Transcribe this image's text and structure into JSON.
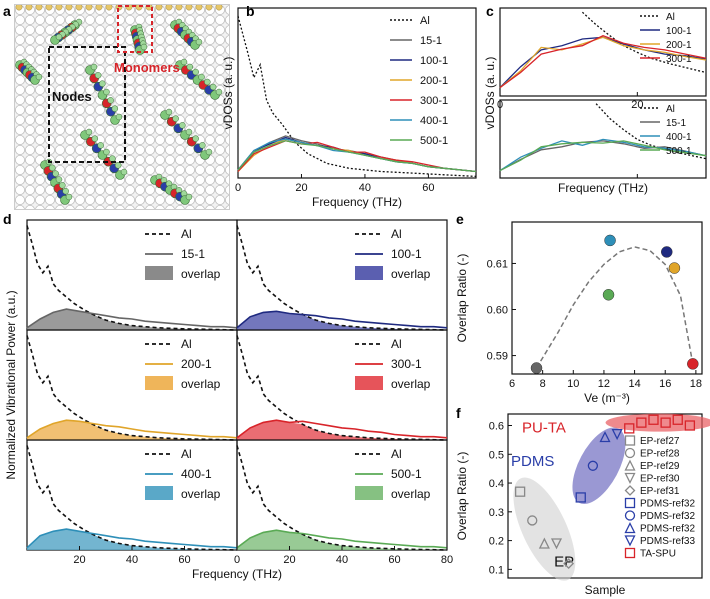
{
  "panel_labels": {
    "a": "a",
    "b": "b",
    "c": "c",
    "d": "d",
    "e": "e",
    "f": "f"
  },
  "panel_a": {
    "nodes_label": "Nodes",
    "monomers_label": "Monomers"
  },
  "colors": {
    "Al": "#111111",
    "15-1": "#666666",
    "100-1": "#1f2a80",
    "200-1": "#e0a52a",
    "300-1": "#d8242a",
    "400-1": "#2e8fb8",
    "500-1": "#5aaa55",
    "node_box": "#111111",
    "monomer_box": "#d8242a",
    "overlap_15": "#8a8a8a",
    "overlap_100": "#5b5fb0",
    "overlap_200": "#efb55a",
    "overlap_300": "#e6545a",
    "overlap_400": "#5aa8c8",
    "overlap_500": "#86c182",
    "pdms_blob": "#6f6cc0",
    "puta_blob": "#e8585c",
    "ep_blob": "#d0d0d0"
  },
  "chart_data": [
    {
      "id": "b",
      "type": "line",
      "title": "",
      "xlabel": "Frequency (THz)",
      "ylabel": "vDOSs (a. u.)",
      "xlim": [
        0,
        75
      ],
      "xticks": [
        0,
        20,
        40,
        60
      ],
      "legend": [
        "Al",
        "15-1",
        "100-1",
        "200-1",
        "300-1",
        "400-1",
        "500-1"
      ],
      "series": [
        {
          "name": "Al",
          "x": [
            0,
            3,
            5,
            7,
            9,
            11,
            14,
            18,
            22,
            28,
            35,
            45,
            55,
            65,
            75
          ],
          "y": [
            1.0,
            0.78,
            0.62,
            0.7,
            0.48,
            0.4,
            0.33,
            0.22,
            0.15,
            0.09,
            0.06,
            0.04,
            0.03,
            0.02,
            0.01
          ]
        },
        {
          "name": "15-1",
          "x": [
            0,
            5,
            10,
            15,
            20,
            25,
            30,
            35,
            40,
            45,
            50,
            55,
            60,
            65,
            70,
            75
          ],
          "y": [
            0.05,
            0.16,
            0.22,
            0.26,
            0.23,
            0.21,
            0.18,
            0.17,
            0.15,
            0.13,
            0.11,
            0.09,
            0.07,
            0.06,
            0.05,
            0.04
          ]
        },
        {
          "name": "100-1",
          "x": [
            0,
            5,
            10,
            15,
            20,
            25,
            30,
            35,
            40,
            45,
            50,
            55,
            60,
            65,
            70,
            75
          ],
          "y": [
            0.05,
            0.17,
            0.21,
            0.25,
            0.22,
            0.2,
            0.19,
            0.16,
            0.15,
            0.12,
            0.1,
            0.09,
            0.07,
            0.06,
            0.05,
            0.04
          ]
        },
        {
          "name": "200-1",
          "x": [
            0,
            5,
            10,
            15,
            20,
            25,
            30,
            35,
            40,
            45,
            50,
            55,
            60,
            65,
            70,
            75
          ],
          "y": [
            0.04,
            0.14,
            0.2,
            0.24,
            0.22,
            0.2,
            0.18,
            0.17,
            0.14,
            0.12,
            0.11,
            0.09,
            0.07,
            0.06,
            0.05,
            0.04
          ]
        },
        {
          "name": "300-1",
          "x": [
            0,
            5,
            10,
            15,
            20,
            25,
            30,
            35,
            40,
            45,
            50,
            55,
            60,
            65,
            70,
            75
          ],
          "y": [
            0.04,
            0.15,
            0.19,
            0.23,
            0.21,
            0.22,
            0.19,
            0.16,
            0.16,
            0.13,
            0.11,
            0.1,
            0.08,
            0.06,
            0.05,
            0.04
          ]
        },
        {
          "name": "400-1",
          "x": [
            0,
            5,
            10,
            15,
            20,
            25,
            30,
            35,
            40,
            45,
            50,
            55,
            60,
            65,
            70,
            75
          ],
          "y": [
            0.05,
            0.17,
            0.22,
            0.24,
            0.22,
            0.2,
            0.17,
            0.16,
            0.14,
            0.12,
            0.1,
            0.09,
            0.07,
            0.06,
            0.05,
            0.04
          ]
        },
        {
          "name": "500-1",
          "x": [
            0,
            5,
            10,
            15,
            20,
            25,
            30,
            35,
            40,
            45,
            50,
            55,
            60,
            65,
            70,
            75
          ],
          "y": [
            0.05,
            0.16,
            0.2,
            0.23,
            0.21,
            0.2,
            0.18,
            0.16,
            0.14,
            0.12,
            0.1,
            0.09,
            0.07,
            0.06,
            0.05,
            0.04
          ]
        }
      ]
    },
    {
      "id": "c",
      "type": "line",
      "title": "",
      "xlabel": "Frequency (THz)",
      "ylabel": "vDOSs (a. u.)",
      "xlim": [
        0,
        30
      ],
      "xticks": [
        0,
        20
      ],
      "subplots": [
        {
          "legend": [
            "Al",
            "100-1",
            "200-1",
            "300-1"
          ],
          "series": [
            {
              "name": "Al",
              "x": [
                12,
                14,
                16,
                18,
                20,
                22,
                25,
                28,
                30
              ],
              "y": [
                1.0,
                0.85,
                0.72,
                0.6,
                0.52,
                0.45,
                0.38,
                0.32,
                0.28
              ]
            },
            {
              "name": "100-1",
              "x": [
                0,
                3,
                6,
                9,
                12,
                15,
                18,
                21,
                24,
                27,
                30
              ],
              "y": [
                0.1,
                0.35,
                0.55,
                0.6,
                0.68,
                0.7,
                0.62,
                0.55,
                0.5,
                0.48,
                0.44
              ]
            },
            {
              "name": "200-1",
              "x": [
                0,
                3,
                6,
                9,
                12,
                15,
                18,
                21,
                24,
                27,
                30
              ],
              "y": [
                0.1,
                0.3,
                0.58,
                0.55,
                0.62,
                0.7,
                0.6,
                0.55,
                0.52,
                0.47,
                0.43
              ]
            },
            {
              "name": "300-1",
              "x": [
                0,
                3,
                6,
                9,
                12,
                15,
                18,
                21,
                24,
                27,
                30
              ],
              "y": [
                0.1,
                0.28,
                0.5,
                0.56,
                0.6,
                0.72,
                0.63,
                0.58,
                0.55,
                0.5,
                0.45
              ]
            }
          ]
        },
        {
          "legend": [
            "Al",
            "15-1",
            "400-1",
            "500-1"
          ],
          "series": [
            {
              "name": "Al",
              "x": [
                14,
                16,
                18,
                20,
                22,
                25,
                28,
                30
              ],
              "y": [
                1.0,
                0.8,
                0.65,
                0.52,
                0.44,
                0.36,
                0.3,
                0.26
              ]
            },
            {
              "name": "15-1",
              "x": [
                0,
                3,
                6,
                9,
                12,
                15,
                18,
                21,
                24,
                27,
                30
              ],
              "y": [
                0.1,
                0.25,
                0.38,
                0.42,
                0.48,
                0.5,
                0.46,
                0.4,
                0.42,
                0.36,
                0.3
              ]
            },
            {
              "name": "400-1",
              "x": [
                0,
                3,
                6,
                9,
                12,
                15,
                18,
                21,
                24,
                27,
                30
              ],
              "y": [
                0.1,
                0.28,
                0.4,
                0.5,
                0.44,
                0.52,
                0.48,
                0.42,
                0.4,
                0.36,
                0.3
              ]
            },
            {
              "name": "500-1",
              "x": [
                0,
                3,
                6,
                9,
                12,
                15,
                18,
                21,
                24,
                27,
                30
              ],
              "y": [
                0.1,
                0.24,
                0.42,
                0.46,
                0.48,
                0.47,
                0.5,
                0.44,
                0.38,
                0.34,
                0.3
              ]
            }
          ]
        }
      ]
    },
    {
      "id": "d",
      "type": "area",
      "title": "",
      "xlabel": "Frequency (THz)",
      "ylabel": "Normalized Vibrational Power (a.u.)",
      "xlim": [
        0,
        80
      ],
      "xticks_left": [
        20,
        40,
        60
      ],
      "xticks_right": [
        0,
        20,
        40,
        60,
        80
      ],
      "al_curve": {
        "x": [
          0,
          2,
          4,
          6,
          8,
          10,
          12,
          15,
          18,
          22,
          26,
          30,
          35,
          40,
          50,
          60,
          70,
          80
        ],
        "y": [
          0.95,
          0.78,
          0.6,
          0.52,
          0.58,
          0.42,
          0.36,
          0.3,
          0.24,
          0.18,
          0.13,
          0.09,
          0.06,
          0.04,
          0.02,
          0.01,
          0.005,
          0.0
        ]
      },
      "subplots": [
        {
          "name": "15-1",
          "legend": [
            "Al",
            "15-1",
            "overlap"
          ],
          "x": [
            0,
            5,
            10,
            15,
            20,
            25,
            30,
            35,
            40,
            45,
            50,
            55,
            60,
            65,
            70,
            75,
            80
          ],
          "y": [
            0.02,
            0.1,
            0.16,
            0.19,
            0.17,
            0.15,
            0.13,
            0.11,
            0.1,
            0.08,
            0.07,
            0.06,
            0.05,
            0.04,
            0.03,
            0.03,
            0.02
          ]
        },
        {
          "name": "100-1",
          "legend": [
            "Al",
            "100-1",
            "overlap"
          ],
          "x": [
            0,
            5,
            10,
            15,
            20,
            25,
            30,
            35,
            40,
            45,
            50,
            55,
            60,
            65,
            70,
            75,
            80
          ],
          "y": [
            0.02,
            0.12,
            0.16,
            0.17,
            0.15,
            0.14,
            0.13,
            0.11,
            0.1,
            0.08,
            0.07,
            0.06,
            0.05,
            0.04,
            0.03,
            0.03,
            0.02
          ]
        },
        {
          "name": "200-1",
          "legend": [
            "Al",
            "200-1",
            "overlap"
          ],
          "x": [
            0,
            5,
            10,
            15,
            20,
            25,
            30,
            35,
            40,
            45,
            50,
            55,
            60,
            65,
            70,
            75,
            80
          ],
          "y": [
            0.02,
            0.1,
            0.15,
            0.18,
            0.17,
            0.15,
            0.13,
            0.12,
            0.1,
            0.08,
            0.07,
            0.06,
            0.05,
            0.04,
            0.03,
            0.03,
            0.02
          ]
        },
        {
          "name": "300-1",
          "legend": [
            "Al",
            "300-1",
            "overlap"
          ],
          "x": [
            0,
            5,
            10,
            15,
            20,
            25,
            30,
            35,
            40,
            45,
            50,
            55,
            60,
            65,
            70,
            75,
            80
          ],
          "y": [
            0.02,
            0.11,
            0.16,
            0.18,
            0.16,
            0.17,
            0.15,
            0.13,
            0.11,
            0.1,
            0.08,
            0.07,
            0.05,
            0.04,
            0.03,
            0.03,
            0.02
          ]
        },
        {
          "name": "400-1",
          "legend": [
            "Al",
            "400-1",
            "overlap"
          ],
          "x": [
            0,
            5,
            10,
            15,
            20,
            25,
            30,
            35,
            40,
            45,
            50,
            55,
            60,
            65,
            70,
            75,
            80
          ],
          "y": [
            0.02,
            0.13,
            0.17,
            0.19,
            0.17,
            0.15,
            0.13,
            0.11,
            0.1,
            0.08,
            0.07,
            0.06,
            0.05,
            0.04,
            0.03,
            0.03,
            0.02
          ]
        },
        {
          "name": "500-1",
          "legend": [
            "Al",
            "500-1",
            "overlap"
          ],
          "x": [
            0,
            5,
            10,
            15,
            20,
            25,
            30,
            35,
            40,
            45,
            50,
            55,
            60,
            65,
            70,
            75,
            80
          ],
          "y": [
            0.02,
            0.11,
            0.16,
            0.18,
            0.16,
            0.15,
            0.13,
            0.11,
            0.1,
            0.08,
            0.07,
            0.06,
            0.05,
            0.04,
            0.03,
            0.03,
            0.02
          ]
        }
      ]
    },
    {
      "id": "e",
      "type": "scatter",
      "title": "",
      "xlabel": "Ve (m⁻³)",
      "ylabel": "Overlap Ratio (-)",
      "xlim": [
        6,
        18.4
      ],
      "ylim": [
        0.586,
        0.619
      ],
      "xticks": [
        6,
        8,
        10,
        12,
        14,
        16,
        18
      ],
      "yticks": [
        0.59,
        0.6,
        0.61
      ],
      "points": [
        {
          "name": "15-1",
          "x": 7.6,
          "y": 0.5873
        },
        {
          "name": "100-1",
          "x": 16.1,
          "y": 0.6125
        },
        {
          "name": "200-1",
          "x": 16.6,
          "y": 0.609
        },
        {
          "name": "300-1",
          "x": 17.8,
          "y": 0.5882
        },
        {
          "name": "400-1",
          "x": 12.4,
          "y": 0.615
        },
        {
          "name": "500-1",
          "x": 12.3,
          "y": 0.6032
        }
      ],
      "fit": {
        "x": [
          7.6,
          9,
          10,
          11,
          12,
          13,
          14,
          15,
          16,
          17,
          17.8
        ],
        "y": [
          0.5873,
          0.595,
          0.601,
          0.606,
          0.6098,
          0.6125,
          0.6136,
          0.6128,
          0.6098,
          0.603,
          0.5882
        ]
      }
    },
    {
      "id": "f",
      "type": "scatter",
      "title": "",
      "xlabel": "Sample",
      "ylabel": "Overlap Ratio (-)",
      "ylim": [
        0.07,
        0.64
      ],
      "yticks": [
        0.1,
        0.2,
        0.3,
        0.4,
        0.5,
        0.6
      ],
      "group_labels": {
        "puta": "PU-TA",
        "pdms": "PDMS",
        "ep": "EP"
      },
      "legend": [
        "EP-ref27",
        "EP-ref28",
        "EP-ref29",
        "EP-ref30",
        "EP-ref31",
        "PDMS-ref32",
        "PDMS-ref32",
        "PDMS-ref32",
        "PDMS-ref33",
        "TA-SPU"
      ],
      "points": [
        {
          "name": "EP-ref27",
          "i": 1,
          "y": 0.37
        },
        {
          "name": "EP-ref28",
          "i": 2,
          "y": 0.27
        },
        {
          "name": "EP-ref29",
          "i": 3,
          "y": 0.19
        },
        {
          "name": "EP-ref30",
          "i": 4,
          "y": 0.19
        },
        {
          "name": "EP-ref31",
          "i": 5,
          "y": 0.12
        },
        {
          "name": "PDMS-ref32",
          "i": 6,
          "y": 0.35
        },
        {
          "name": "PDMS-ref32",
          "i": 7,
          "y": 0.46
        },
        {
          "name": "PDMS-ref32",
          "i": 8,
          "y": 0.56
        },
        {
          "name": "PDMS-ref33",
          "i": 9,
          "y": 0.57
        },
        {
          "name": "TA-SPU",
          "i": 10,
          "y": 0.59
        },
        {
          "name": "TA-SPU",
          "i": 11,
          "y": 0.61
        },
        {
          "name": "TA-SPU",
          "i": 12,
          "y": 0.62
        },
        {
          "name": "TA-SPU",
          "i": 13,
          "y": 0.61
        },
        {
          "name": "TA-SPU",
          "i": 14,
          "y": 0.62
        },
        {
          "name": "TA-SPU",
          "i": 15,
          "y": 0.6
        }
      ]
    }
  ]
}
